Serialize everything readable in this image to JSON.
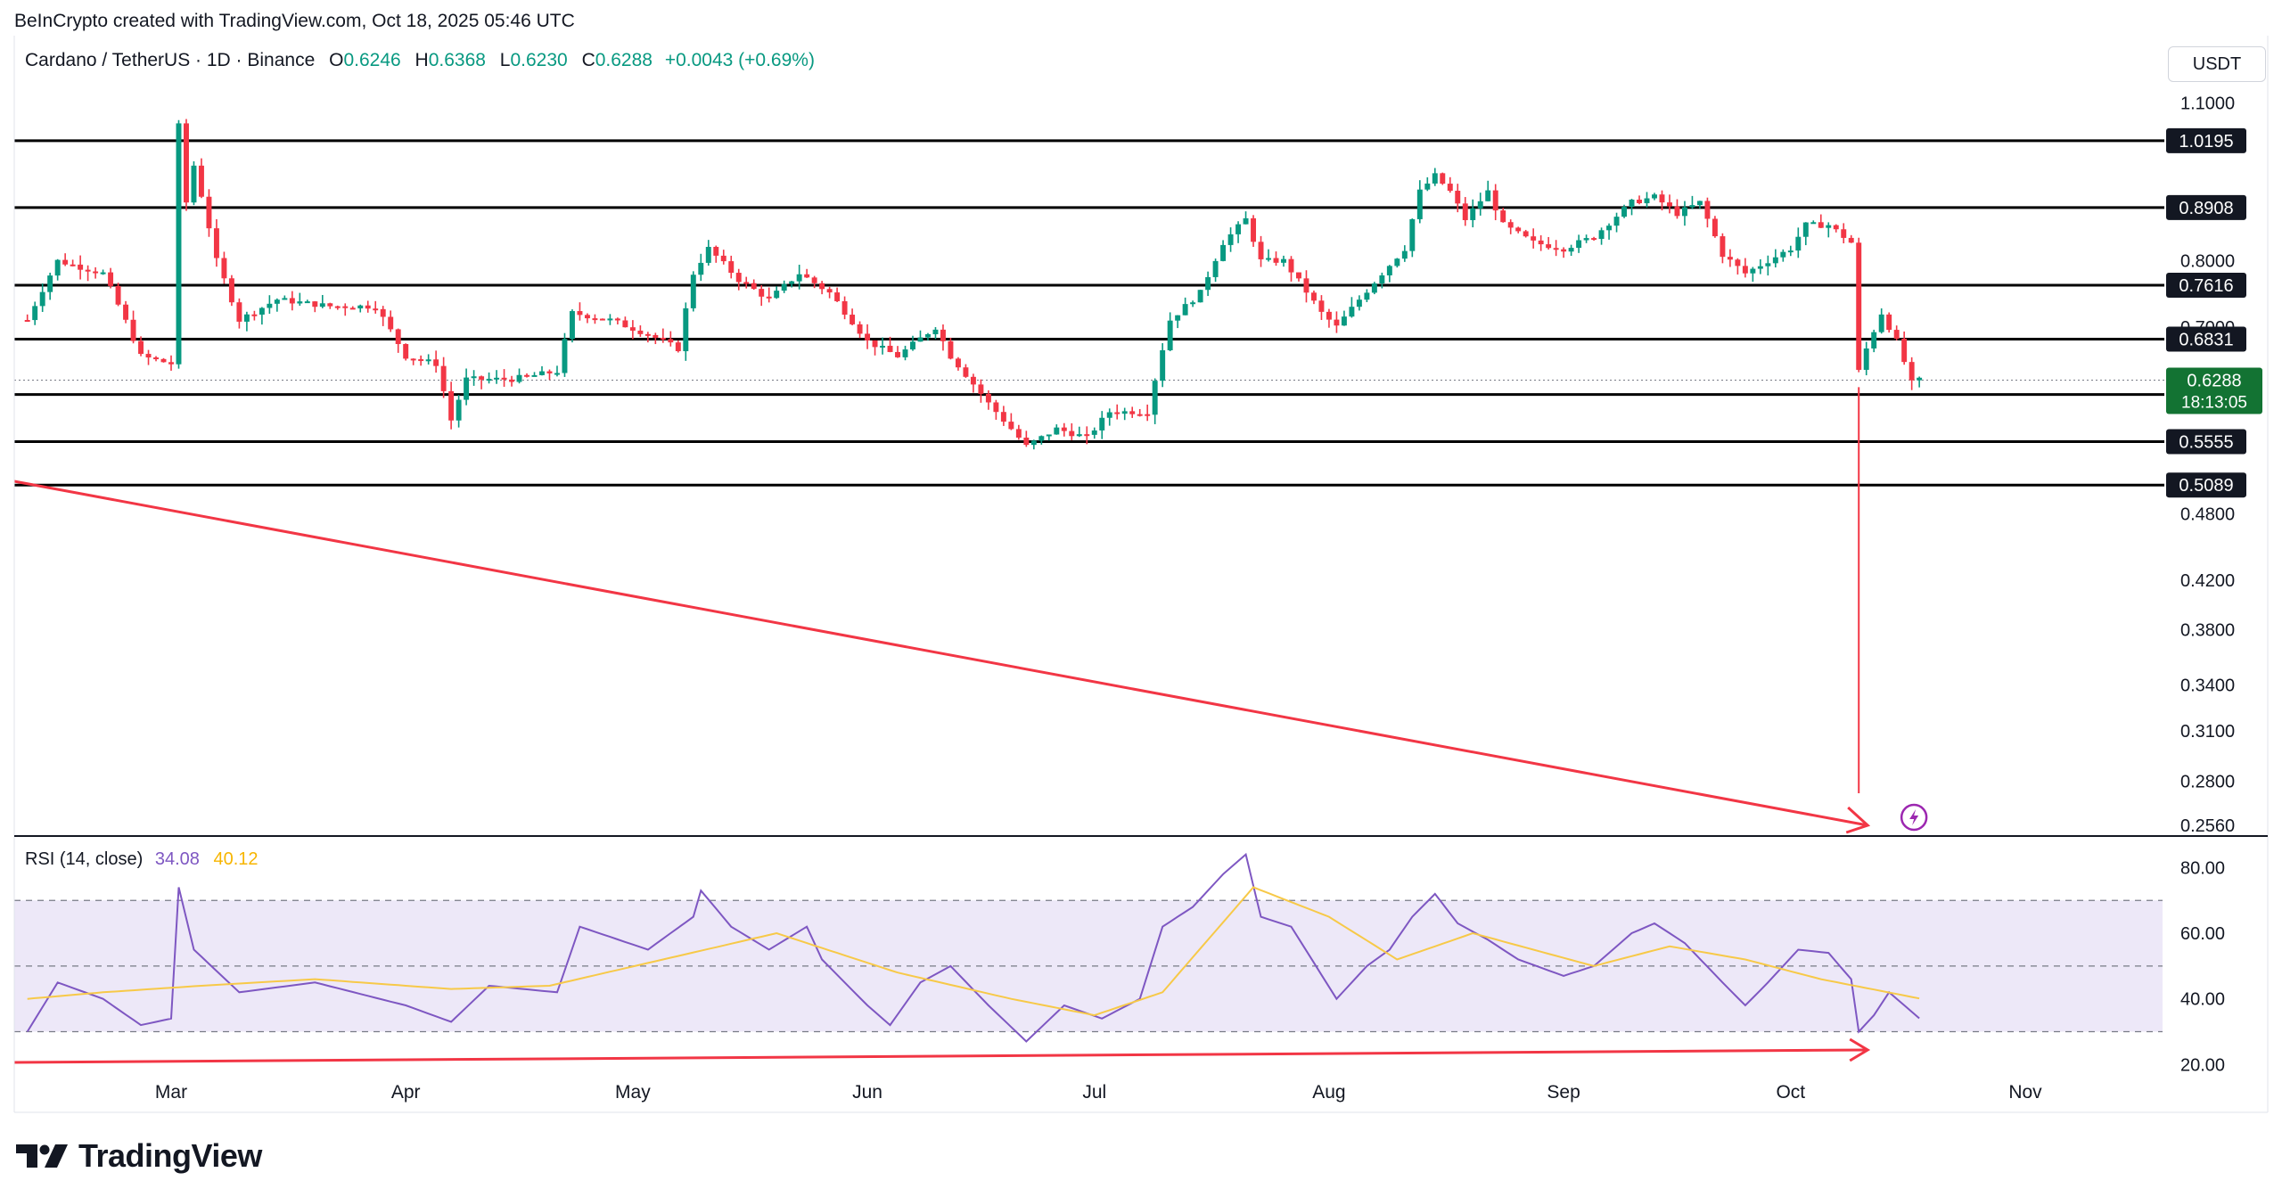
{
  "header": {
    "credit": "BeInCrypto created with TradingView.com, Oct 18, 2025 05:46 UTC",
    "symbol": "Cardano / TetherUS · 1D · Binance",
    "o_label": "O",
    "o_value": "0.6246",
    "h_label": "H",
    "h_value": "0.6368",
    "l_label": "L",
    "l_value": "0.6230",
    "c_label": "C",
    "c_value": "0.6288",
    "change": "+0.0043 (+0.69%)",
    "currency": "USDT"
  },
  "rsi_header": {
    "label": "RSI (14, close)",
    "rsi_value": "34.08",
    "ma_value": "40.12"
  },
  "price_badge": {
    "price": "0.6288",
    "countdown": "18:13:05"
  },
  "branding": {
    "logo_text": "TradingView"
  },
  "colors": {
    "up": "#089981",
    "down": "#f23645",
    "level_line": "#000000",
    "annotation": "#f23645",
    "rsi_line": "#7e57c2",
    "rsi_ma": "#f7c948",
    "rsi_band": "#ede8f8",
    "current_price_bg": "#137333"
  },
  "chart_data": [
    {
      "type": "candlestick",
      "title": "Cardano / TetherUS · 1D · Binance",
      "x_axis_labels": [
        "Mar",
        "Apr",
        "May",
        "Jun",
        "Jul",
        "Aug",
        "Sep",
        "Oct",
        "Nov"
      ],
      "y_axis_ticks": [
        "1.1000",
        "0.8000",
        "0.7000",
        "0.4800",
        "0.4200",
        "0.3800",
        "0.3400",
        "0.3100",
        "0.2800",
        "0.2560"
      ],
      "y_scale": "log",
      "ylim": [
        0.252,
        1.22
      ],
      "horizontal_levels": [
        1.0195,
        0.8908,
        0.7616,
        0.6831,
        0.6109,
        0.5555,
        0.5089
      ],
      "level_labels": [
        "1.0195",
        "0.8908",
        "0.7616",
        "0.6831",
        "0.6109",
        "0.5555",
        "0.5089"
      ],
      "last_price": 0.6288,
      "candle_anchors": [
        {
          "date": "Feb 10",
          "close": 0.71
        },
        {
          "date": "Feb 14",
          "close": 0.8
        },
        {
          "date": "Feb 20",
          "close": 0.78
        },
        {
          "date": "Feb 25",
          "close": 0.66
        },
        {
          "date": "Mar 1",
          "close": 0.65
        },
        {
          "date": "Mar 2",
          "close": 1.05
        },
        {
          "date": "Mar 3",
          "close": 0.9
        },
        {
          "date": "Mar 4",
          "close": 0.97
        },
        {
          "date": "Mar 7",
          "close": 0.8
        },
        {
          "date": "Mar 10",
          "close": 0.71
        },
        {
          "date": "Mar 15",
          "close": 0.74
        },
        {
          "date": "Mar 22",
          "close": 0.73
        },
        {
          "date": "Mar 28",
          "close": 0.73
        },
        {
          "date": "Apr 1",
          "close": 0.66
        },
        {
          "date": "Apr 5",
          "close": 0.65
        },
        {
          "date": "Apr 7",
          "close": 0.58
        },
        {
          "date": "Apr 9",
          "close": 0.63
        },
        {
          "date": "Apr 15",
          "close": 0.63
        },
        {
          "date": "Apr 21",
          "close": 0.64
        },
        {
          "date": "Apr 23",
          "close": 0.72
        },
        {
          "date": "Apr 28",
          "close": 0.71
        },
        {
          "date": "May 3",
          "close": 0.69
        },
        {
          "date": "May 7",
          "close": 0.67
        },
        {
          "date": "May 9",
          "close": 0.78
        },
        {
          "date": "May 11",
          "close": 0.82
        },
        {
          "date": "May 15",
          "close": 0.77
        },
        {
          "date": "May 19",
          "close": 0.74
        },
        {
          "date": "May 23",
          "close": 0.78
        },
        {
          "date": "May 27",
          "close": 0.75
        },
        {
          "date": "Jun 1",
          "close": 0.68
        },
        {
          "date": "Jun 5",
          "close": 0.66
        },
        {
          "date": "Jun 10",
          "close": 0.7
        },
        {
          "date": "Jun 12",
          "close": 0.66
        },
        {
          "date": "Jun 17",
          "close": 0.6
        },
        {
          "date": "Jun 22",
          "close": 0.55
        },
        {
          "date": "Jun 26",
          "close": 0.57
        },
        {
          "date": "Jun 30",
          "close": 0.56
        },
        {
          "date": "Jul 3",
          "close": 0.59
        },
        {
          "date": "Jul 8",
          "close": 0.59
        },
        {
          "date": "Jul 11",
          "close": 0.71
        },
        {
          "date": "Jul 15",
          "close": 0.75
        },
        {
          "date": "Jul 18",
          "close": 0.83
        },
        {
          "date": "Jul 21",
          "close": 0.87
        },
        {
          "date": "Jul 23",
          "close": 0.8
        },
        {
          "date": "Jul 26",
          "close": 0.8
        },
        {
          "date": "Jul 31",
          "close": 0.72
        },
        {
          "date": "Aug 2",
          "close": 0.7
        },
        {
          "date": "Aug 5",
          "close": 0.74
        },
        {
          "date": "Aug 8",
          "close": 0.78
        },
        {
          "date": "Aug 11",
          "close": 0.82
        },
        {
          "date": "Aug 13",
          "close": 0.92
        },
        {
          "date": "Aug 15",
          "close": 0.95
        },
        {
          "date": "Aug 17",
          "close": 0.92
        },
        {
          "date": "Aug 19",
          "close": 0.87
        },
        {
          "date": "Aug 22",
          "close": 0.92
        },
        {
          "date": "Aug 24",
          "close": 0.86
        },
        {
          "date": "Aug 28",
          "close": 0.83
        },
        {
          "date": "Sep 1",
          "close": 0.82
        },
        {
          "date": "Sep 5",
          "close": 0.84
        },
        {
          "date": "Sep 10",
          "close": 0.9
        },
        {
          "date": "Sep 13",
          "close": 0.91
        },
        {
          "date": "Sep 16",
          "close": 0.88
        },
        {
          "date": "Sep 19",
          "close": 0.9
        },
        {
          "date": "Sep 22",
          "close": 0.81
        },
        {
          "date": "Sep 25",
          "close": 0.78
        },
        {
          "date": "Sep 28",
          "close": 0.8
        },
        {
          "date": "Oct 1",
          "close": 0.82
        },
        {
          "date": "Oct 3",
          "close": 0.86
        },
        {
          "date": "Oct 6",
          "close": 0.86
        },
        {
          "date": "Oct 9",
          "close": 0.83
        },
        {
          "date": "Oct 10",
          "close": 0.64
        },
        {
          "date": "Oct 11",
          "close": 0.67
        },
        {
          "date": "Oct 13",
          "close": 0.72
        },
        {
          "date": "Oct 15",
          "close": 0.68
        },
        {
          "date": "Oct 17",
          "close": 0.625
        },
        {
          "date": "Oct 18",
          "close": 0.6288
        }
      ]
    },
    {
      "type": "line",
      "title": "RSI (14, close)",
      "y_axis_ticks": [
        "80.00",
        "60.00",
        "40.00",
        "20.00"
      ],
      "ylim": [
        19,
        85
      ],
      "bands": {
        "upper": 70,
        "middle": 50,
        "lower": 30
      },
      "series": [
        {
          "name": "RSI",
          "anchors": [
            {
              "date": "Feb 10",
              "value": 30
            },
            {
              "date": "Feb 14",
              "value": 45
            },
            {
              "date": "Feb 20",
              "value": 40
            },
            {
              "date": "Feb 25",
              "value": 32
            },
            {
              "date": "Mar 1",
              "value": 34
            },
            {
              "date": "Mar 2",
              "value": 74
            },
            {
              "date": "Mar 4",
              "value": 55
            },
            {
              "date": "Mar 10",
              "value": 42
            },
            {
              "date": "Mar 20",
              "value": 45
            },
            {
              "date": "Apr 1",
              "value": 38
            },
            {
              "date": "Apr 7",
              "value": 33
            },
            {
              "date": "Apr 12",
              "value": 44
            },
            {
              "date": "Apr 21",
              "value": 42
            },
            {
              "date": "Apr 24",
              "value": 62
            },
            {
              "date": "May 3",
              "value": 55
            },
            {
              "date": "May 9",
              "value": 65
            },
            {
              "date": "May 10",
              "value": 73
            },
            {
              "date": "May 14",
              "value": 62
            },
            {
              "date": "May 19",
              "value": 55
            },
            {
              "date": "May 24",
              "value": 62
            },
            {
              "date": "May 26",
              "value": 52
            },
            {
              "date": "Jun 1",
              "value": 38
            },
            {
              "date": "Jun 4",
              "value": 32
            },
            {
              "date": "Jun 8",
              "value": 45
            },
            {
              "date": "Jun 12",
              "value": 50
            },
            {
              "date": "Jun 17",
              "value": 38
            },
            {
              "date": "Jun 22",
              "value": 27
            },
            {
              "date": "Jun 27",
              "value": 38
            },
            {
              "date": "Jul 2",
              "value": 34
            },
            {
              "date": "Jul 7",
              "value": 40
            },
            {
              "date": "Jul 10",
              "value": 62
            },
            {
              "date": "Jul 14",
              "value": 68
            },
            {
              "date": "Jul 18",
              "value": 78
            },
            {
              "date": "Jul 21",
              "value": 84
            },
            {
              "date": "Jul 23",
              "value": 65
            },
            {
              "date": "Jul 27",
              "value": 62
            },
            {
              "date": "Aug 2",
              "value": 40
            },
            {
              "date": "Aug 6",
              "value": 50
            },
            {
              "date": "Aug 9",
              "value": 55
            },
            {
              "date": "Aug 12",
              "value": 65
            },
            {
              "date": "Aug 15",
              "value": 72
            },
            {
              "date": "Aug 18",
              "value": 63
            },
            {
              "date": "Aug 22",
              "value": 58
            },
            {
              "date": "Aug 26",
              "value": 52
            },
            {
              "date": "Sep 1",
              "value": 47
            },
            {
              "date": "Sep 5",
              "value": 50
            },
            {
              "date": "Sep 10",
              "value": 60
            },
            {
              "date": "Sep 13",
              "value": 63
            },
            {
              "date": "Sep 17",
              "value": 57
            },
            {
              "date": "Sep 22",
              "value": 45
            },
            {
              "date": "Sep 25",
              "value": 38
            },
            {
              "date": "Sep 28",
              "value": 45
            },
            {
              "date": "Oct 2",
              "value": 55
            },
            {
              "date": "Oct 6",
              "value": 54
            },
            {
              "date": "Oct 9",
              "value": 46
            },
            {
              "date": "Oct 10",
              "value": 30
            },
            {
              "date": "Oct 12",
              "value": 35
            },
            {
              "date": "Oct 14",
              "value": 42
            },
            {
              "date": "Oct 18",
              "value": 34.08
            }
          ]
        },
        {
          "name": "RSI-based MA",
          "anchors": [
            {
              "date": "Feb 10",
              "value": 40
            },
            {
              "date": "Feb 20",
              "value": 42
            },
            {
              "date": "Mar 5",
              "value": 44
            },
            {
              "date": "Mar 20",
              "value": 46
            },
            {
              "date": "Apr 7",
              "value": 43
            },
            {
              "date": "Apr 20",
              "value": 44
            },
            {
              "date": "May 5",
              "value": 52
            },
            {
              "date": "May 20",
              "value": 60
            },
            {
              "date": "Jun 5",
              "value": 48
            },
            {
              "date": "Jun 20",
              "value": 40
            },
            {
              "date": "Jul 1",
              "value": 35
            },
            {
              "date": "Jul 10",
              "value": 42
            },
            {
              "date": "Jul 22",
              "value": 74
            },
            {
              "date": "Aug 1",
              "value": 65
            },
            {
              "date": "Aug 10",
              "value": 52
            },
            {
              "date": "Aug 20",
              "value": 60
            },
            {
              "date": "Sep 5",
              "value": 50
            },
            {
              "date": "Sep 15",
              "value": 56
            },
            {
              "date": "Sep 25",
              "value": 52
            },
            {
              "date": "Oct 5",
              "value": 46
            },
            {
              "date": "Oct 18",
              "value": 40.12
            }
          ]
        }
      ]
    }
  ]
}
